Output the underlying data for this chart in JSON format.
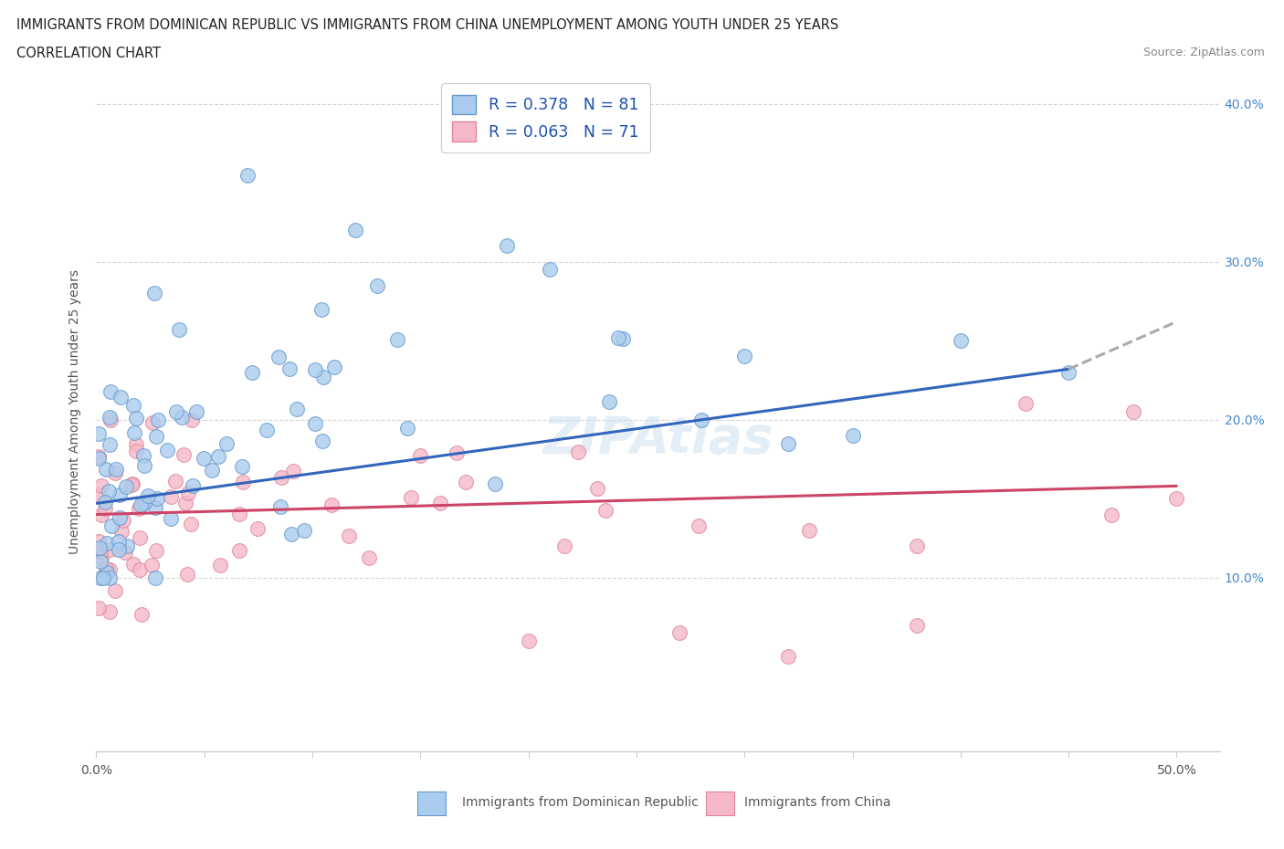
{
  "title_line1": "IMMIGRANTS FROM DOMINICAN REPUBLIC VS IMMIGRANTS FROM CHINA UNEMPLOYMENT AMONG YOUTH UNDER 25 YEARS",
  "title_line2": "CORRELATION CHART",
  "source_text": "Source: ZipAtlas.com",
  "ylabel": "Unemployment Among Youth under 25 years",
  "xlim": [
    0.0,
    0.52
  ],
  "ylim": [
    -0.01,
    0.42
  ],
  "ytick_positions": [
    0.1,
    0.2,
    0.3,
    0.4
  ],
  "ytick_labels": [
    "10.0%",
    "20.0%",
    "30.0%",
    "40.0%"
  ],
  "series1_color": "#aaccee",
  "series1_edge": "#6699cc",
  "series2_color": "#f5b8c8",
  "series2_edge": "#dd8899",
  "trendline1_color": "#3366bb",
  "trendline2_color": "#cc4466",
  "trendline_ext_color": "#aaaaaa",
  "R1": 0.378,
  "N1": 81,
  "R2": 0.063,
  "N2": 71,
  "legend_label1": "Immigrants from Dominican Republic",
  "legend_label2": "Immigrants from China",
  "watermark": "ZIPAtlas",
  "background_color": "#ffffff",
  "trendline1_x0": 0.0,
  "trendline1_y0": 0.147,
  "trendline1_x1": 0.45,
  "trendline1_y1": 0.232,
  "trendline1_xe": 0.5,
  "trendline1_ye": 0.262,
  "trendline2_x0": 0.0,
  "trendline2_y0": 0.14,
  "trendline2_x1": 0.5,
  "trendline2_y1": 0.158
}
